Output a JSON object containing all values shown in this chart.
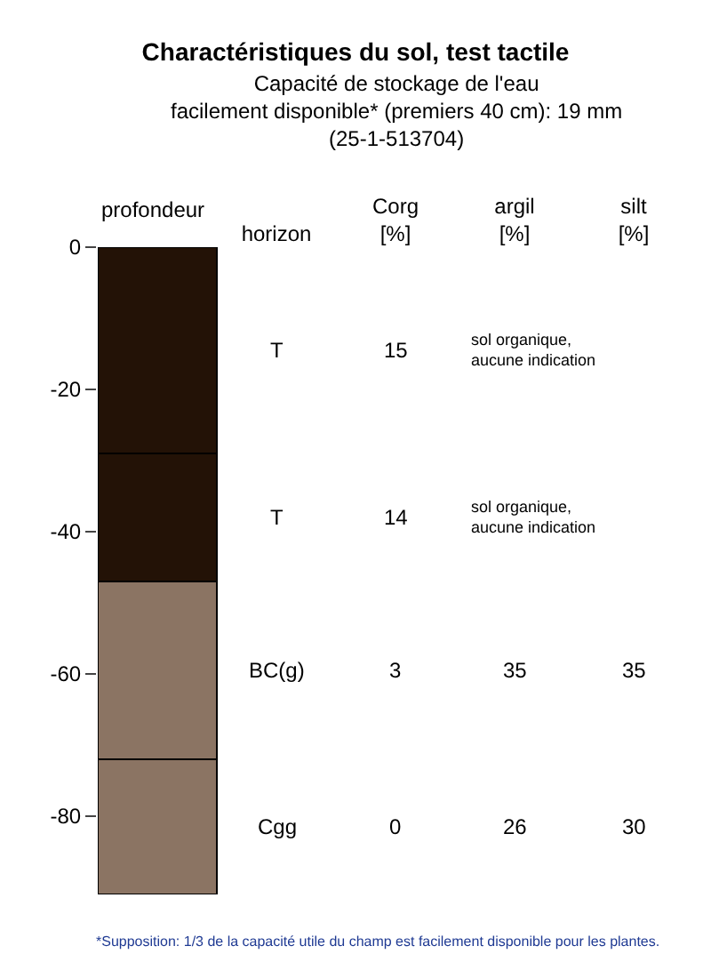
{
  "chart_data": {
    "type": "bar",
    "title": "Charactéristiques du sol, test tactile",
    "subtitle": "Capacité de stockage de l'eau\nfacilement disponible* (premiers 40 cm): 19 mm\n(25-1-513704)",
    "ylabel": "profondeur",
    "categories": [
      null,
      "horizon",
      "Corg\n[%]",
      "argil\n[%]",
      "silt\n[%]"
    ],
    "stacked": true,
    "series": [
      {
        "name": "T",
        "color": "#231206",
        "values": [
          -29,
          null,
          null,
          null,
          null
        ],
        "value_labels": [
          null,
          null,
          "15",
          "sol organique,\naucune indication",
          null
        ]
      },
      {
        "name": "T",
        "color": "#231206",
        "values": [
          -18,
          null,
          null,
          null,
          null
        ],
        "value_labels": [
          null,
          null,
          "14",
          "sol organique,\naucune indication",
          null
        ]
      },
      {
        "name": "BC(g)",
        "color": "#8b7463",
        "values": [
          -25,
          null,
          null,
          null,
          null
        ],
        "value_labels": [
          null,
          null,
          "3",
          "35",
          "35"
        ]
      },
      {
        "name": "Cgg",
        "color": "#8b7463",
        "values": [
          -19,
          null,
          null,
          null,
          null
        ],
        "value_labels": [
          null,
          null,
          "0",
          "26",
          "30"
        ]
      }
    ],
    "ylim": [
      -91,
      0
    ],
    "yticks": [
      0,
      -20,
      -40,
      -60,
      -80
    ],
    "grid": false,
    "legend": false,
    "annotations": [
      "*Supposition: 1/3 de la capacité utile du champ est facilement disponible pour les plantes."
    ]
  }
}
